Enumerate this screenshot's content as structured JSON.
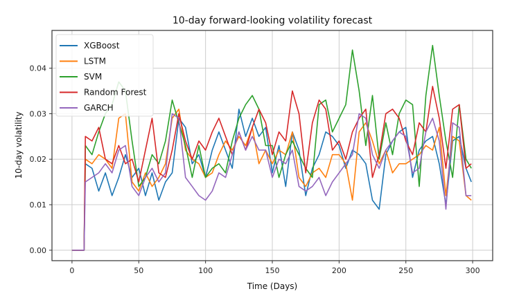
{
  "chart_data": {
    "type": "line",
    "title": "10-day forward-looking volatility forecast",
    "xlabel": "Time (Days)",
    "ylabel": "10-day volatility",
    "xlim": [
      -15,
      315
    ],
    "ylim": [
      -0.0023,
      0.0483
    ],
    "xticks": [
      0,
      50,
      100,
      150,
      200,
      250,
      300
    ],
    "xtick_labels": [
      "0",
      "50",
      "100",
      "150",
      "200",
      "250",
      "300"
    ],
    "yticks": [
      0.0,
      0.01,
      0.02,
      0.03,
      0.04
    ],
    "ytick_labels": [
      "0.00",
      "0.01",
      "0.02",
      "0.03",
      "0.04"
    ],
    "grid": true,
    "legend_position": "top-left",
    "x": [
      0,
      5,
      9,
      10,
      15,
      20,
      25,
      30,
      35,
      40,
      45,
      50,
      55,
      60,
      65,
      70,
      75,
      80,
      85,
      90,
      95,
      100,
      105,
      110,
      115,
      120,
      125,
      130,
      135,
      140,
      145,
      150,
      155,
      160,
      165,
      170,
      175,
      180,
      185,
      190,
      195,
      200,
      205,
      210,
      215,
      220,
      225,
      230,
      235,
      240,
      245,
      250,
      255,
      260,
      265,
      270,
      275,
      280,
      285,
      290,
      295,
      299
    ],
    "series": [
      {
        "name": "XGBoost",
        "color": "#1f77b4",
        "values": [
          0,
          0,
          0,
          0.019,
          0.018,
          0.013,
          0.017,
          0.012,
          0.016,
          0.021,
          0.016,
          0.018,
          0.012,
          0.017,
          0.011,
          0.015,
          0.017,
          0.029,
          0.027,
          0.019,
          0.021,
          0.016,
          0.022,
          0.026,
          0.022,
          0.018,
          0.031,
          0.025,
          0.029,
          0.025,
          0.027,
          0.017,
          0.023,
          0.014,
          0.026,
          0.022,
          0.012,
          0.018,
          0.021,
          0.026,
          0.025,
          0.023,
          0.018,
          0.022,
          0.021,
          0.019,
          0.011,
          0.009,
          0.021,
          0.024,
          0.026,
          0.027,
          0.016,
          0.022,
          0.024,
          0.025,
          0.019,
          0.01,
          0.024,
          0.025,
          0.018,
          0.015
        ]
      },
      {
        "name": "LSTM",
        "color": "#ff7f0e",
        "values": [
          0,
          0,
          0,
          0.02,
          0.019,
          0.021,
          0.02,
          0.018,
          0.029,
          0.03,
          0.015,
          0.013,
          0.017,
          0.014,
          0.016,
          0.019,
          0.029,
          0.031,
          0.022,
          0.02,
          0.019,
          0.016,
          0.017,
          0.021,
          0.024,
          0.022,
          0.025,
          0.023,
          0.027,
          0.019,
          0.022,
          0.019,
          0.022,
          0.021,
          0.026,
          0.016,
          0.014,
          0.017,
          0.018,
          0.016,
          0.021,
          0.021,
          0.019,
          0.011,
          0.026,
          0.028,
          0.024,
          0.019,
          0.022,
          0.017,
          0.019,
          0.019,
          0.02,
          0.021,
          0.023,
          0.022,
          0.027,
          0.012,
          0.025,
          0.024,
          0.012,
          0.011
        ]
      },
      {
        "name": "SVM",
        "color": "#2ca02c",
        "values": [
          0,
          0,
          0,
          0.023,
          0.021,
          0.026,
          0.03,
          0.032,
          0.037,
          0.035,
          0.024,
          0.014,
          0.016,
          0.021,
          0.019,
          0.024,
          0.033,
          0.028,
          0.023,
          0.016,
          0.023,
          0.016,
          0.018,
          0.019,
          0.017,
          0.024,
          0.029,
          0.032,
          0.034,
          0.031,
          0.023,
          0.023,
          0.016,
          0.021,
          0.024,
          0.021,
          0.018,
          0.016,
          0.032,
          0.033,
          0.026,
          0.029,
          0.032,
          0.044,
          0.035,
          0.023,
          0.034,
          0.02,
          0.028,
          0.021,
          0.03,
          0.033,
          0.032,
          0.014,
          0.034,
          0.045,
          0.034,
          0.024,
          0.016,
          0.032,
          0.02,
          0.018
        ]
      },
      {
        "name": "Random Forest",
        "color": "#d62728",
        "values": [
          0,
          0,
          0,
          0.025,
          0.024,
          0.027,
          0.02,
          0.019,
          0.023,
          0.019,
          0.02,
          0.015,
          0.022,
          0.029,
          0.017,
          0.016,
          0.022,
          0.03,
          0.024,
          0.02,
          0.024,
          0.022,
          0.026,
          0.029,
          0.025,
          0.021,
          0.026,
          0.022,
          0.027,
          0.031,
          0.028,
          0.021,
          0.026,
          0.024,
          0.035,
          0.03,
          0.017,
          0.028,
          0.033,
          0.031,
          0.022,
          0.024,
          0.02,
          0.026,
          0.029,
          0.031,
          0.016,
          0.021,
          0.03,
          0.031,
          0.029,
          0.024,
          0.021,
          0.028,
          0.026,
          0.036,
          0.029,
          0.018,
          0.031,
          0.032,
          0.018,
          0.019
        ]
      },
      {
        "name": "GARCH",
        "color": "#9467bd",
        "values": [
          0,
          0,
          0,
          0.015,
          0.016,
          0.017,
          0.019,
          0.017,
          0.022,
          0.023,
          0.014,
          0.012,
          0.016,
          0.018,
          0.015,
          0.017,
          0.03,
          0.029,
          0.016,
          0.014,
          0.012,
          0.011,
          0.013,
          0.017,
          0.016,
          0.021,
          0.026,
          0.022,
          0.025,
          0.022,
          0.022,
          0.016,
          0.02,
          0.019,
          0.022,
          0.014,
          0.013,
          0.014,
          0.016,
          0.012,
          0.015,
          0.017,
          0.019,
          0.021,
          0.03,
          0.029,
          0.021,
          0.018,
          0.022,
          0.024,
          0.026,
          0.025,
          0.017,
          0.018,
          0.026,
          0.029,
          0.024,
          0.009,
          0.028,
          0.027,
          0.012,
          0.012
        ]
      }
    ]
  }
}
